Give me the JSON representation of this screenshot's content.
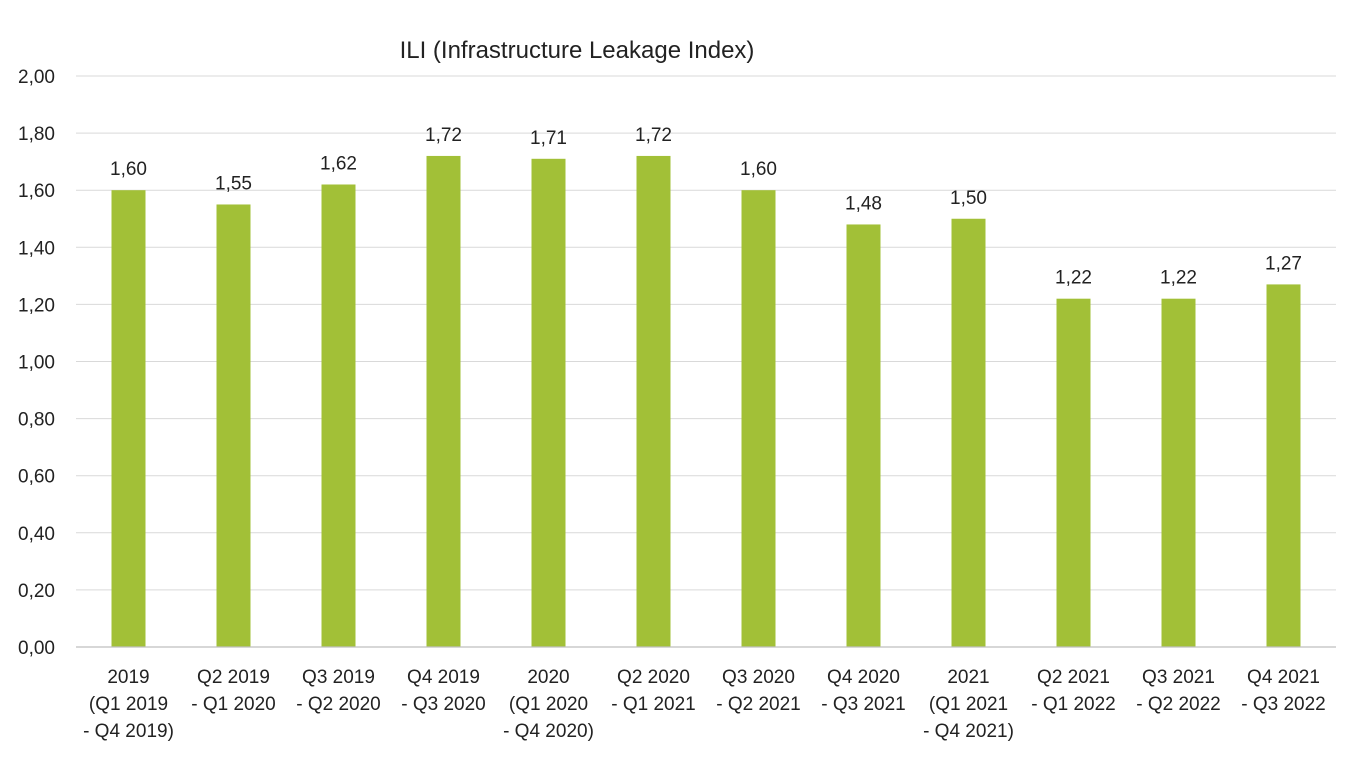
{
  "chart_data": {
    "type": "bar",
    "title": "ILI (Infrastructure Leakage Index)",
    "categories": [
      [
        "2019",
        "(Q1 2019",
        "- Q4 2019)"
      ],
      [
        "Q2 2019",
        "- Q1 2020"
      ],
      [
        "Q3 2019",
        "- Q2 2020"
      ],
      [
        "Q4 2019",
        "- Q3 2020"
      ],
      [
        "2020",
        "(Q1 2020",
        "- Q4 2020)"
      ],
      [
        "Q2 2020",
        "- Q1 2021"
      ],
      [
        "Q3 2020",
        "- Q2 2021"
      ],
      [
        "Q4 2020",
        "- Q3 2021"
      ],
      [
        "2021",
        "(Q1 2021",
        "- Q4 2021)"
      ],
      [
        "Q2 2021",
        "- Q1 2022"
      ],
      [
        "Q3 2021",
        "- Q2 2022"
      ],
      [
        "Q4 2021",
        "- Q3 2022"
      ]
    ],
    "values": [
      1.6,
      1.55,
      1.62,
      1.72,
      1.71,
      1.72,
      1.6,
      1.48,
      1.5,
      1.22,
      1.22,
      1.27
    ],
    "value_labels": [
      "1,60",
      "1,55",
      "1,62",
      "1,72",
      "1,71",
      "1,72",
      "1,60",
      "1,48",
      "1,50",
      "1,22",
      "1,22",
      "1,27"
    ],
    "ylim": [
      0,
      2
    ],
    "yticks": [
      0,
      0.2,
      0.4,
      0.6,
      0.8,
      1.0,
      1.2,
      1.4,
      1.6,
      1.8,
      2.0
    ],
    "ytick_labels": [
      "0,00",
      "0,20",
      "0,40",
      "0,60",
      "0,80",
      "1,00",
      "1,20",
      "1,40",
      "1,60",
      "1,80",
      "2,00"
    ],
    "grid": true,
    "legend": "none",
    "bar_color": "#a2c037",
    "grid_color": "#d9d9d9",
    "axis_color": "#bfbfbf"
  }
}
